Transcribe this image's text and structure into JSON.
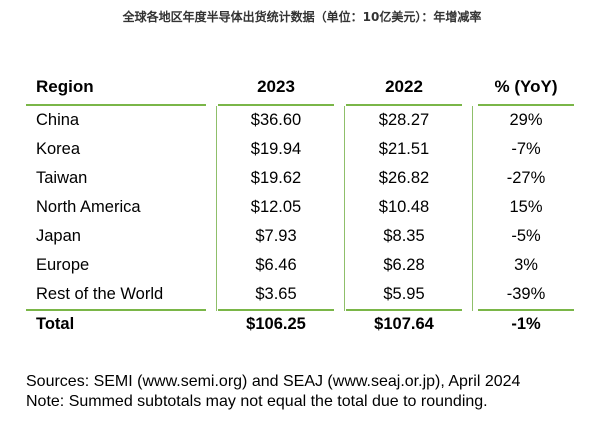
{
  "caption": "全球各地区年度半导体出货统计数据（单位：10亿美元）：年增减率",
  "table": {
    "headers": {
      "region": "Region",
      "y2023": "2023",
      "y2022": "2022",
      "yoy": "% (YoY)"
    },
    "rows": [
      {
        "region": "China",
        "y2023": "$36.60",
        "y2022": "$28.27",
        "yoy": "29%"
      },
      {
        "region": "Korea",
        "y2023": "$19.94",
        "y2022": "$21.51",
        "yoy": "-7%"
      },
      {
        "region": "Taiwan",
        "y2023": "$19.62",
        "y2022": "$26.82",
        "yoy": "-27%"
      },
      {
        "region": "North America",
        "y2023": "$12.05",
        "y2022": "$10.48",
        "yoy": "15%"
      },
      {
        "region": "Japan",
        "y2023": "$7.93",
        "y2022": "$8.35",
        "yoy": "-5%"
      },
      {
        "region": "Europe",
        "y2023": "$6.46",
        "y2022": "$6.28",
        "yoy": "3%"
      },
      {
        "region": "Rest of the World",
        "y2023": "$3.65",
        "y2022": "$5.95",
        "yoy": "-39%"
      }
    ],
    "total": {
      "region": "Total",
      "y2023": "$106.25",
      "y2022": "$107.64",
      "yoy": "-1%"
    }
  },
  "notes": {
    "sources": "Sources: SEMI (www.semi.org) and SEAJ (www.seaj.or.jp), April 2024",
    "note": "Note: Summed subtotals may not equal the total due to rounding."
  },
  "colors": {
    "rule_green": "#7ab648"
  }
}
